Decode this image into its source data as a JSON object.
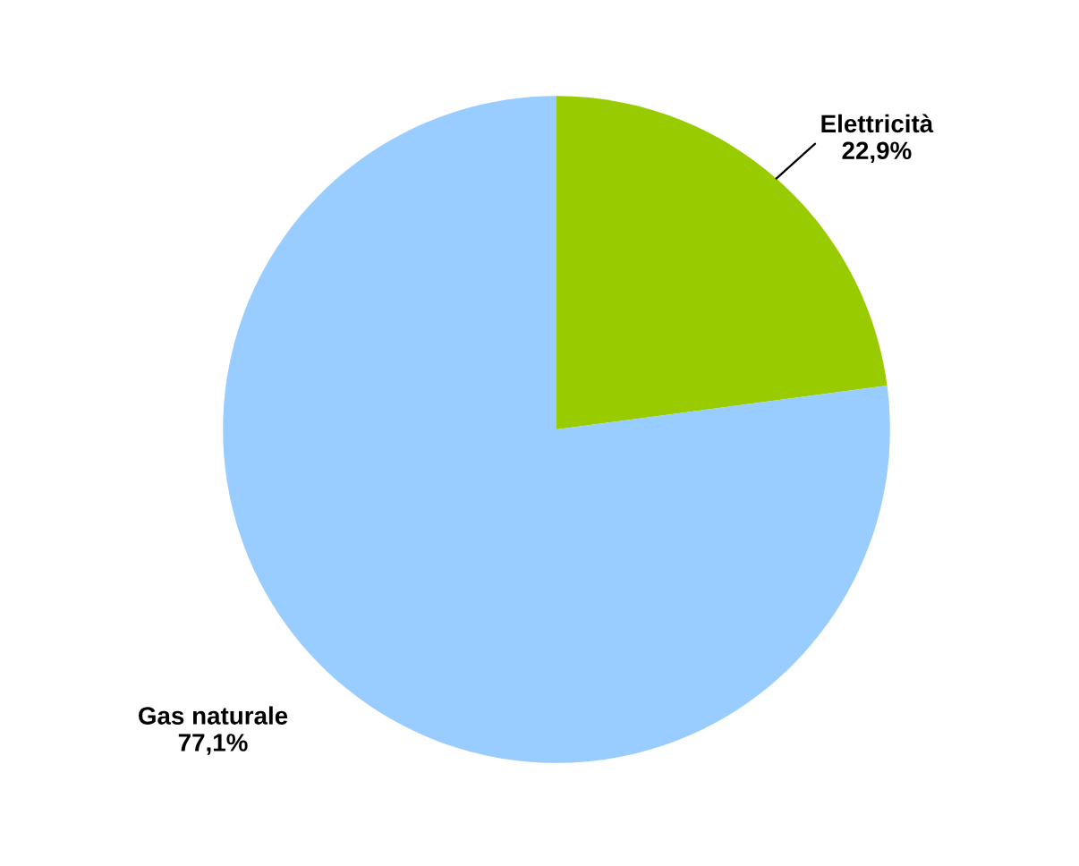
{
  "chart_data": {
    "type": "pie",
    "categories": [
      "Elettricità",
      "Gas naturale"
    ],
    "values": [
      22.9,
      77.1
    ],
    "colors": [
      "#99cc00",
      "#99ccff"
    ],
    "value_labels": [
      "22,9%",
      "77,1%"
    ],
    "legend": false
  }
}
